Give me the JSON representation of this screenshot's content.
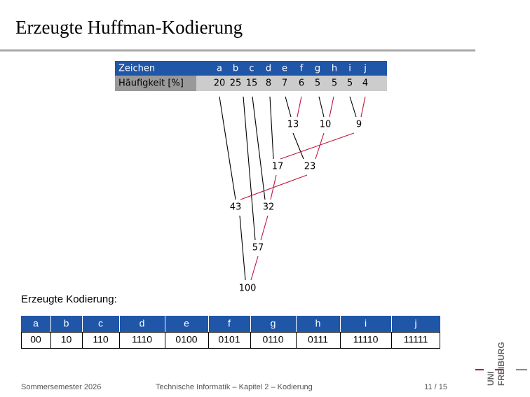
{
  "header": {
    "title": "Erzeugte Huffman-Kodierung"
  },
  "frequency_table": {
    "row_labels": [
      "Zeichen",
      "Häufigkeit [%]"
    ],
    "symbols": [
      "a",
      "b",
      "c",
      "d",
      "e",
      "f",
      "g",
      "h",
      "i",
      "j"
    ],
    "frequencies": [
      20,
      25,
      15,
      8,
      7,
      6,
      5,
      5,
      5,
      4
    ]
  },
  "tree": {
    "nodes": [
      13,
      10,
      9,
      17,
      23,
      43,
      32,
      57,
      100
    ]
  },
  "code_heading": "Erzeugte Kodierung:",
  "code_table": {
    "symbols": [
      "a",
      "b",
      "c",
      "d",
      "e",
      "f",
      "g",
      "h",
      "i",
      "j"
    ],
    "codes": [
      "00",
      "10",
      "110",
      "1110",
      "0100",
      "0101",
      "0110",
      "0111",
      "11110",
      "11111"
    ]
  },
  "footer": {
    "left": "Sommersemester 2026",
    "center": "Technische Informatik – Kapitel 2 – Kodierung",
    "page": "11 / 15"
  },
  "logo": {
    "top": "UNI",
    "bottom": "FREIBURG"
  }
}
